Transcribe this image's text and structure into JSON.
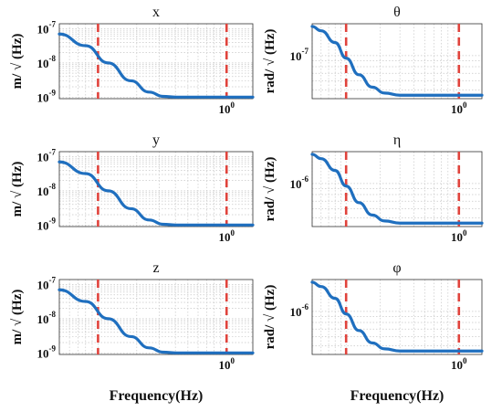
{
  "colors": {
    "curve": "#1f6fbf",
    "marker_line": "#e0433c",
    "grid": "#c8c8c8",
    "axis": "#333333"
  },
  "chart_data": [
    {
      "type": "line",
      "title": "x",
      "ylabel": "m/ √ (Hz)",
      "xlabel": "",
      "x_scale": "log",
      "y_scale": "log",
      "xlim": [
        0.05,
        1.6
      ],
      "ylim": [
        9e-10,
        1.4e-07
      ],
      "x_ticks": [
        {
          "value": 1,
          "label": "10",
          "exp": "0"
        }
      ],
      "y_ticks": [
        {
          "value": 1e-09,
          "label": "10",
          "exp": "-9"
        },
        {
          "value": 1e-08,
          "label": "10",
          "exp": "-8"
        },
        {
          "value": 1e-07,
          "label": "10",
          "exp": "-7"
        }
      ],
      "series": [
        {
          "x": [
            0.05,
            0.08,
            0.12,
            0.18,
            0.25,
            0.32,
            0.4,
            0.6,
            1.0,
            1.6
          ],
          "y": [
            7e-08,
            3.2e-08,
            1e-08,
            3e-09,
            1.4e-09,
            1.05e-09,
            1e-09,
            1e-09,
            1e-09,
            1e-09
          ]
        }
      ],
      "markers_x": [
        0.1,
        1.0
      ],
      "grid": true
    },
    {
      "type": "line",
      "title": "θ",
      "ylabel": "rad/ √ (Hz)",
      "xlabel": "",
      "x_scale": "log",
      "y_scale": "log",
      "xlim": [
        0.05,
        1.6
      ],
      "ylim": [
        4.2e-08,
        1.9e-07
      ],
      "x_ticks": [
        {
          "value": 1,
          "label": "10",
          "exp": "0"
        }
      ],
      "y_ticks": [
        {
          "value": 1e-07,
          "label": "10",
          "exp": "-7"
        }
      ],
      "series": [
        {
          "x": [
            0.05,
            0.06,
            0.08,
            0.1,
            0.13,
            0.17,
            0.22,
            0.3,
            0.5,
            1.0,
            1.6
          ],
          "y": [
            1.8e-07,
            1.65e-07,
            1.3e-07,
            9.5e-08,
            6.8e-08,
            5.3e-08,
            4.7e-08,
            4.5e-08,
            4.5e-08,
            4.5e-08,
            4.5e-08
          ]
        }
      ],
      "markers_x": [
        0.1,
        1.0
      ],
      "grid": true
    },
    {
      "type": "line",
      "title": "y",
      "ylabel": "m/ √ (Hz)",
      "xlabel": "",
      "x_scale": "log",
      "y_scale": "log",
      "xlim": [
        0.05,
        1.6
      ],
      "ylim": [
        9e-10,
        1.4e-07
      ],
      "x_ticks": [
        {
          "value": 1,
          "label": "10",
          "exp": "0"
        }
      ],
      "y_ticks": [
        {
          "value": 1e-09,
          "label": "10",
          "exp": "-9"
        },
        {
          "value": 1e-08,
          "label": "10",
          "exp": "-8"
        },
        {
          "value": 1e-07,
          "label": "10",
          "exp": "-7"
        }
      ],
      "series": [
        {
          "x": [
            0.05,
            0.08,
            0.12,
            0.18,
            0.25,
            0.32,
            0.4,
            0.6,
            1.0,
            1.6
          ],
          "y": [
            7e-08,
            3.2e-08,
            1e-08,
            3e-09,
            1.4e-09,
            1.05e-09,
            1e-09,
            1e-09,
            1e-09,
            1e-09
          ]
        }
      ],
      "markers_x": [
        0.1,
        1.0
      ],
      "grid": true
    },
    {
      "type": "line",
      "title": "η",
      "ylabel": "rad/ √ (Hz)",
      "xlabel": "",
      "x_scale": "log",
      "y_scale": "log",
      "xlim": [
        0.05,
        1.6
      ],
      "ylim": [
        4.2e-07,
        1.9e-06
      ],
      "x_ticks": [
        {
          "value": 1,
          "label": "10",
          "exp": "0"
        }
      ],
      "y_ticks": [
        {
          "value": 1e-06,
          "label": "10",
          "exp": "-6"
        }
      ],
      "series": [
        {
          "x": [
            0.05,
            0.06,
            0.08,
            0.1,
            0.13,
            0.17,
            0.22,
            0.3,
            0.5,
            1.0,
            1.6
          ],
          "y": [
            1.8e-06,
            1.65e-06,
            1.3e-06,
            9.5e-07,
            6.8e-07,
            5.3e-07,
            4.7e-07,
            4.5e-07,
            4.5e-07,
            4.5e-07,
            4.5e-07
          ]
        }
      ],
      "markers_x": [
        0.1,
        1.0
      ],
      "grid": true
    },
    {
      "type": "line",
      "title": "z",
      "ylabel": "m/ √ (Hz)",
      "xlabel": "Frequency(Hz)",
      "x_scale": "log",
      "y_scale": "log",
      "xlim": [
        0.05,
        1.6
      ],
      "ylim": [
        9e-10,
        1.4e-07
      ],
      "x_ticks": [
        {
          "value": 1,
          "label": "10",
          "exp": "0"
        }
      ],
      "y_ticks": [
        {
          "value": 1e-09,
          "label": "10",
          "exp": "-9"
        },
        {
          "value": 1e-08,
          "label": "10",
          "exp": "-8"
        },
        {
          "value": 1e-07,
          "label": "10",
          "exp": "-7"
        }
      ],
      "series": [
        {
          "x": [
            0.05,
            0.08,
            0.12,
            0.18,
            0.25,
            0.32,
            0.4,
            0.6,
            1.0,
            1.6
          ],
          "y": [
            7e-08,
            3.2e-08,
            1e-08,
            3e-09,
            1.4e-09,
            1.05e-09,
            1e-09,
            1e-09,
            1e-09,
            1e-09
          ]
        }
      ],
      "markers_x": [
        0.1,
        1.0
      ],
      "grid": true
    },
    {
      "type": "line",
      "title": "φ",
      "ylabel": "rad/ √ (Hz)",
      "xlabel": "Frequency(Hz)",
      "x_scale": "log",
      "y_scale": "log",
      "xlim": [
        0.05,
        1.6
      ],
      "ylim": [
        4.2e-07,
        1.9e-06
      ],
      "x_ticks": [
        {
          "value": 1,
          "label": "10",
          "exp": "0"
        }
      ],
      "y_ticks": [
        {
          "value": 1e-06,
          "label": "10",
          "exp": "-6"
        }
      ],
      "series": [
        {
          "x": [
            0.05,
            0.06,
            0.08,
            0.1,
            0.13,
            0.17,
            0.22,
            0.3,
            0.5,
            1.0,
            1.6
          ],
          "y": [
            1.8e-06,
            1.65e-06,
            1.3e-06,
            9.5e-07,
            6.8e-07,
            5.3e-07,
            4.7e-07,
            4.5e-07,
            4.5e-07,
            4.5e-07,
            4.5e-07
          ]
        }
      ],
      "markers_x": [
        0.1,
        1.0
      ],
      "grid": true
    }
  ]
}
